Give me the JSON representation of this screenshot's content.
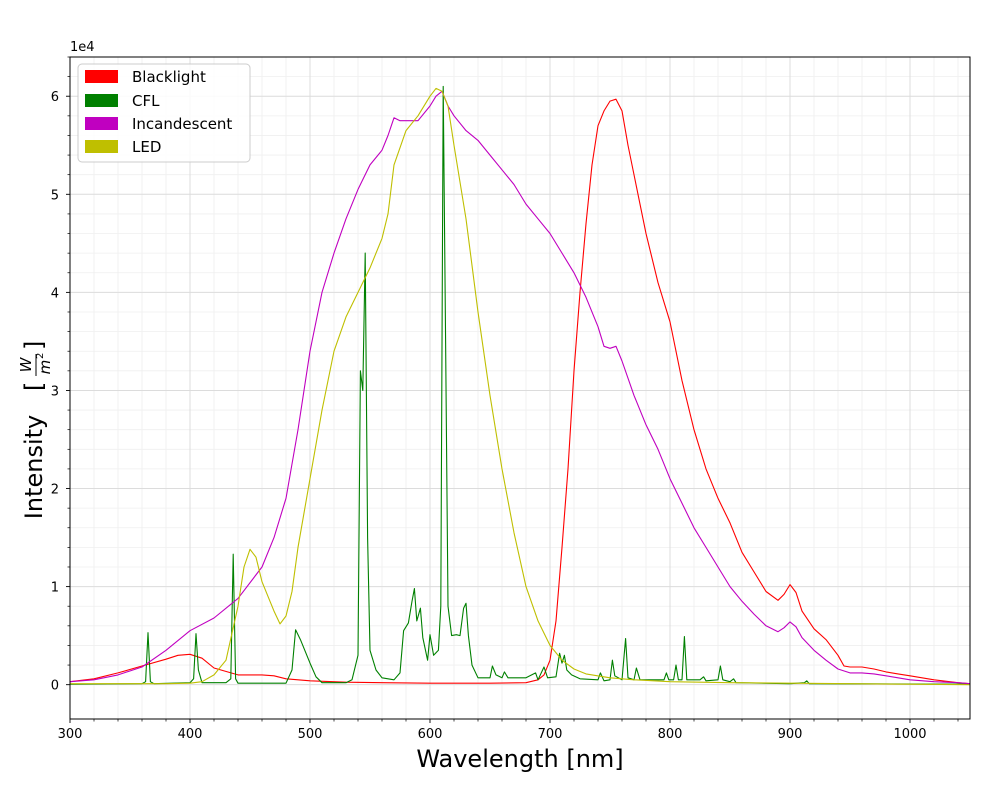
{
  "chart_data": {
    "type": "line",
    "title": "",
    "xlabel": "Wavelength [nm]",
    "ylabel": "Intensity",
    "ylabel_unit_numerator": "W",
    "ylabel_unit_denominator": "m",
    "ylabel_unit_exponent": "2",
    "offset_text": "1e4",
    "xlim": [
      300,
      1050
    ],
    "ylim": [
      -3500,
      64000
    ],
    "x_ticks": [
      300,
      400,
      500,
      600,
      700,
      800,
      900,
      1000
    ],
    "x_tick_labels": [
      "300",
      "400",
      "500",
      "600",
      "700",
      "800",
      "900",
      "1000"
    ],
    "y_ticks": [
      0,
      10000,
      20000,
      30000,
      40000,
      50000,
      60000
    ],
    "y_tick_labels": [
      "0",
      "1",
      "2",
      "3",
      "4",
      "5",
      "6"
    ],
    "grid": true,
    "legend_position": "top-left",
    "series": [
      {
        "name": "Blacklight",
        "color": "#ff0000",
        "points": [
          [
            300,
            300
          ],
          [
            320,
            600
          ],
          [
            340,
            1200
          ],
          [
            360,
            1900
          ],
          [
            380,
            2600
          ],
          [
            390,
            3000
          ],
          [
            400,
            3100
          ],
          [
            410,
            2700
          ],
          [
            420,
            1700
          ],
          [
            440,
            1000
          ],
          [
            460,
            1000
          ],
          [
            470,
            900
          ],
          [
            480,
            600
          ],
          [
            500,
            400
          ],
          [
            530,
            250
          ],
          [
            560,
            200
          ],
          [
            600,
            150
          ],
          [
            650,
            150
          ],
          [
            680,
            200
          ],
          [
            690,
            500
          ],
          [
            695,
            1000
          ],
          [
            700,
            2500
          ],
          [
            705,
            6500
          ],
          [
            710,
            14000
          ],
          [
            715,
            22000
          ],
          [
            720,
            32000
          ],
          [
            725,
            40000
          ],
          [
            730,
            47000
          ],
          [
            735,
            53000
          ],
          [
            740,
            57000
          ],
          [
            745,
            58500
          ],
          [
            750,
            59500
          ],
          [
            755,
            59700
          ],
          [
            760,
            58500
          ],
          [
            765,
            55000
          ],
          [
            770,
            52000
          ],
          [
            775,
            49000
          ],
          [
            780,
            46000
          ],
          [
            790,
            41000
          ],
          [
            800,
            37000
          ],
          [
            810,
            31000
          ],
          [
            820,
            26000
          ],
          [
            830,
            22000
          ],
          [
            840,
            19000
          ],
          [
            850,
            16500
          ],
          [
            860,
            13500
          ],
          [
            870,
            11500
          ],
          [
            880,
            9500
          ],
          [
            890,
            8600
          ],
          [
            895,
            9200
          ],
          [
            900,
            10200
          ],
          [
            905,
            9400
          ],
          [
            910,
            7500
          ],
          [
            920,
            5700
          ],
          [
            930,
            4600
          ],
          [
            940,
            3000
          ],
          [
            945,
            1900
          ],
          [
            950,
            1800
          ],
          [
            960,
            1800
          ],
          [
            970,
            1600
          ],
          [
            980,
            1300
          ],
          [
            990,
            1100
          ],
          [
            1000,
            900
          ],
          [
            1020,
            500
          ],
          [
            1040,
            200
          ],
          [
            1050,
            100
          ]
        ]
      },
      {
        "name": "CFL",
        "color": "#008000",
        "points": [
          [
            300,
            50
          ],
          [
            360,
            100
          ],
          [
            363,
            300
          ],
          [
            365,
            5300
          ],
          [
            367,
            300
          ],
          [
            370,
            100
          ],
          [
            400,
            200
          ],
          [
            403,
            600
          ],
          [
            405,
            5200
          ],
          [
            407,
            1500
          ],
          [
            410,
            200
          ],
          [
            430,
            200
          ],
          [
            434,
            600
          ],
          [
            436,
            13300
          ],
          [
            438,
            600
          ],
          [
            440,
            150
          ],
          [
            480,
            150
          ],
          [
            485,
            1500
          ],
          [
            488,
            5600
          ],
          [
            492,
            4600
          ],
          [
            500,
            2200
          ],
          [
            505,
            800
          ],
          [
            510,
            200
          ],
          [
            530,
            200
          ],
          [
            535,
            500
          ],
          [
            540,
            3000
          ],
          [
            542,
            32000
          ],
          [
            544,
            30000
          ],
          [
            546,
            44000
          ],
          [
            548,
            15000
          ],
          [
            550,
            3500
          ],
          [
            555,
            1500
          ],
          [
            560,
            700
          ],
          [
            570,
            500
          ],
          [
            575,
            1200
          ],
          [
            578,
            5500
          ],
          [
            582,
            6300
          ],
          [
            585,
            8500
          ],
          [
            587,
            9800
          ],
          [
            589,
            6500
          ],
          [
            592,
            7800
          ],
          [
            594,
            4800
          ],
          [
            598,
            2500
          ],
          [
            600,
            5100
          ],
          [
            603,
            3000
          ],
          [
            607,
            3500
          ],
          [
            609,
            8000
          ],
          [
            611,
            61000
          ],
          [
            613,
            35000
          ],
          [
            615,
            8000
          ],
          [
            618,
            5000
          ],
          [
            622,
            5100
          ],
          [
            625,
            5000
          ],
          [
            628,
            7800
          ],
          [
            630,
            8300
          ],
          [
            632,
            5000
          ],
          [
            635,
            2000
          ],
          [
            640,
            700
          ],
          [
            650,
            700
          ],
          [
            652,
            1900
          ],
          [
            655,
            1000
          ],
          [
            660,
            700
          ],
          [
            662,
            1300
          ],
          [
            665,
            700
          ],
          [
            680,
            700
          ],
          [
            688,
            1200
          ],
          [
            690,
            500
          ],
          [
            695,
            1800
          ],
          [
            698,
            700
          ],
          [
            705,
            800
          ],
          [
            708,
            3200
          ],
          [
            710,
            2200
          ],
          [
            712,
            3000
          ],
          [
            714,
            1500
          ],
          [
            718,
            1000
          ],
          [
            725,
            600
          ],
          [
            740,
            500
          ],
          [
            742,
            1200
          ],
          [
            745,
            400
          ],
          [
            750,
            500
          ],
          [
            752,
            2500
          ],
          [
            754,
            900
          ],
          [
            760,
            500
          ],
          [
            763,
            4700
          ],
          [
            765,
            700
          ],
          [
            770,
            500
          ],
          [
            772,
            1700
          ],
          [
            775,
            500
          ],
          [
            795,
            500
          ],
          [
            797,
            1200
          ],
          [
            799,
            500
          ],
          [
            803,
            500
          ],
          [
            805,
            2000
          ],
          [
            807,
            500
          ],
          [
            810,
            500
          ],
          [
            812,
            4900
          ],
          [
            814,
            500
          ],
          [
            825,
            500
          ],
          [
            828,
            800
          ],
          [
            830,
            400
          ],
          [
            840,
            500
          ],
          [
            842,
            1900
          ],
          [
            844,
            500
          ],
          [
            850,
            300
          ],
          [
            853,
            600
          ],
          [
            855,
            200
          ],
          [
            900,
            100
          ],
          [
            912,
            200
          ],
          [
            914,
            400
          ],
          [
            916,
            100
          ],
          [
            1050,
            50
          ]
        ]
      },
      {
        "name": "Incandescent",
        "color": "#c000c0",
        "points": [
          [
            300,
            300
          ],
          [
            320,
            500
          ],
          [
            340,
            1000
          ],
          [
            360,
            1800
          ],
          [
            380,
            3500
          ],
          [
            400,
            5500
          ],
          [
            420,
            6800
          ],
          [
            440,
            8800
          ],
          [
            460,
            12000
          ],
          [
            470,
            15000
          ],
          [
            480,
            19000
          ],
          [
            490,
            26000
          ],
          [
            500,
            34000
          ],
          [
            510,
            40000
          ],
          [
            520,
            44000
          ],
          [
            530,
            47500
          ],
          [
            540,
            50500
          ],
          [
            550,
            53000
          ],
          [
            560,
            54500
          ],
          [
            565,
            56000
          ],
          [
            570,
            57800
          ],
          [
            575,
            57500
          ],
          [
            580,
            57500
          ],
          [
            590,
            57500
          ],
          [
            600,
            59000
          ],
          [
            605,
            60000
          ],
          [
            610,
            60500
          ],
          [
            615,
            59000
          ],
          [
            620,
            58000
          ],
          [
            630,
            56500
          ],
          [
            640,
            55500
          ],
          [
            650,
            54000
          ],
          [
            660,
            52500
          ],
          [
            670,
            51000
          ],
          [
            680,
            49000
          ],
          [
            690,
            47500
          ],
          [
            700,
            46000
          ],
          [
            710,
            44000
          ],
          [
            720,
            42000
          ],
          [
            730,
            39500
          ],
          [
            740,
            36500
          ],
          [
            745,
            34500
          ],
          [
            750,
            34300
          ],
          [
            755,
            34500
          ],
          [
            760,
            33000
          ],
          [
            770,
            29500
          ],
          [
            780,
            26500
          ],
          [
            790,
            24000
          ],
          [
            800,
            21000
          ],
          [
            810,
            18500
          ],
          [
            820,
            16000
          ],
          [
            830,
            14000
          ],
          [
            840,
            12000
          ],
          [
            850,
            10000
          ],
          [
            860,
            8500
          ],
          [
            870,
            7200
          ],
          [
            880,
            6000
          ],
          [
            890,
            5400
          ],
          [
            895,
            5800
          ],
          [
            900,
            6400
          ],
          [
            905,
            5900
          ],
          [
            910,
            4800
          ],
          [
            920,
            3500
          ],
          [
            930,
            2500
          ],
          [
            940,
            1600
          ],
          [
            950,
            1200
          ],
          [
            960,
            1200
          ],
          [
            970,
            1100
          ],
          [
            980,
            900
          ],
          [
            990,
            700
          ],
          [
            1000,
            500
          ],
          [
            1020,
            300
          ],
          [
            1040,
            200
          ],
          [
            1050,
            100
          ]
        ]
      },
      {
        "name": "LED",
        "color": "#bfbf00",
        "points": [
          [
            300,
            100
          ],
          [
            380,
            100
          ],
          [
            400,
            150
          ],
          [
            410,
            300
          ],
          [
            420,
            1000
          ],
          [
            430,
            2500
          ],
          [
            440,
            8000
          ],
          [
            445,
            12000
          ],
          [
            450,
            13800
          ],
          [
            455,
            13000
          ],
          [
            460,
            10500
          ],
          [
            465,
            9000
          ],
          [
            470,
            7500
          ],
          [
            475,
            6200
          ],
          [
            480,
            7000
          ],
          [
            485,
            9500
          ],
          [
            490,
            14000
          ],
          [
            500,
            21000
          ],
          [
            510,
            28000
          ],
          [
            520,
            34000
          ],
          [
            530,
            37500
          ],
          [
            540,
            40000
          ],
          [
            550,
            42500
          ],
          [
            560,
            45500
          ],
          [
            565,
            48000
          ],
          [
            570,
            53000
          ],
          [
            580,
            56500
          ],
          [
            590,
            58000
          ],
          [
            600,
            60000
          ],
          [
            605,
            60800
          ],
          [
            610,
            60500
          ],
          [
            615,
            59000
          ],
          [
            620,
            55000
          ],
          [
            630,
            47500
          ],
          [
            640,
            38000
          ],
          [
            650,
            29500
          ],
          [
            660,
            22000
          ],
          [
            670,
            15500
          ],
          [
            680,
            10000
          ],
          [
            690,
            6500
          ],
          [
            700,
            4000
          ],
          [
            710,
            2500
          ],
          [
            720,
            1600
          ],
          [
            730,
            1100
          ],
          [
            750,
            700
          ],
          [
            770,
            500
          ],
          [
            800,
            300
          ],
          [
            850,
            200
          ],
          [
            900,
            150
          ],
          [
            950,
            100
          ],
          [
            1000,
            50
          ],
          [
            1050,
            0
          ]
        ]
      }
    ]
  }
}
